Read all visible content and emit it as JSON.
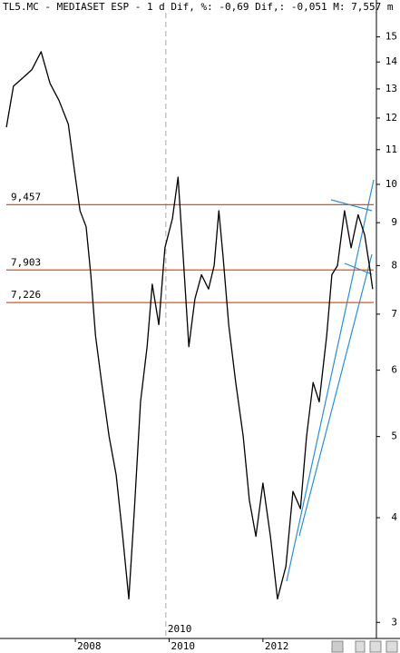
{
  "chart_data": {
    "type": "line",
    "title": "TL5.MC - MEDIASET ESP -  1 d Dif, %: -0,69 Dif,: -0,051 M: 7,557 m",
    "log_scale_y": true,
    "xlim": [
      2006.49,
      2014.42
    ],
    "xticks": [
      2008,
      2010,
      2012
    ],
    "ylim": [
      2.87,
      16.6
    ],
    "yticks": [
      3,
      4,
      5,
      6,
      7,
      8,
      9,
      10,
      11,
      12,
      13,
      14,
      15
    ],
    "cursor": {
      "value": 2009.93,
      "label": "2010"
    },
    "hlines": [
      {
        "value": 9.457,
        "label": "9,457"
      },
      {
        "value": 7.903,
        "label": "7,903"
      },
      {
        "value": 7.226,
        "label": "7,226"
      }
    ],
    "hline_color": "#e0501a",
    "series": [
      {
        "color": "#000000",
        "x": [
          2006.53,
          2006.68,
          2006.88,
          2007.07,
          2007.27,
          2007.46,
          2007.65,
          2007.85,
          2007.98,
          2008.1,
          2008.23,
          2008.33,
          2008.43,
          2008.56,
          2008.72,
          2008.87,
          2009.01,
          2009.14,
          2009.26,
          2009.39,
          2009.53,
          2009.64,
          2009.78,
          2009.91,
          2010.07,
          2010.19,
          2010.3,
          2010.42,
          2010.55,
          2010.69,
          2010.84,
          2010.96,
          2011.06,
          2011.15,
          2011.27,
          2011.42,
          2011.58,
          2011.71,
          2011.85,
          2012.0,
          2012.16,
          2012.31,
          2012.49,
          2012.64,
          2012.8,
          2012.93,
          2013.07,
          2013.2,
          2013.36,
          2013.47,
          2013.59,
          2013.74,
          2013.88,
          2014.03,
          2014.17,
          2014.27,
          2014.34
        ],
        "values": [
          11.7,
          13.1,
          13.4,
          13.7,
          14.4,
          13.2,
          12.6,
          11.8,
          10.4,
          9.3,
          8.9,
          7.8,
          6.6,
          5.8,
          5.0,
          4.5,
          3.8,
          3.2,
          4.1,
          5.5,
          6.4,
          7.6,
          6.8,
          8.4,
          9.1,
          10.2,
          8.2,
          6.4,
          7.3,
          7.8,
          7.5,
          8.0,
          9.3,
          8.2,
          6.8,
          5.8,
          5.0,
          4.2,
          3.8,
          4.4,
          3.8,
          3.2,
          3.5,
          4.3,
          4.1,
          5.0,
          5.8,
          5.5,
          6.6,
          7.8,
          8.0,
          9.3,
          8.4,
          9.2,
          8.7,
          8.0,
          7.5
        ]
      }
    ]
  }
}
